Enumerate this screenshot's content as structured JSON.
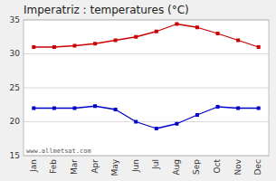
{
  "chart_data": {
    "type": "line",
    "title": "Imperatriz : temperatures (°C)",
    "categories": [
      "Jan",
      "Feb",
      "Mar",
      "Apr",
      "May",
      "Jun",
      "Jul",
      "Aug",
      "Sep",
      "Oct",
      "Nov",
      "Dec"
    ],
    "series": [
      {
        "color": "#cc0000",
        "marker": "square",
        "values": [
          31.0,
          31.0,
          31.2,
          31.5,
          32.0,
          32.5,
          33.3,
          34.4,
          33.9,
          33.0,
          32.0,
          31.0
        ]
      },
      {
        "color": "#0000cc",
        "marker": "square",
        "values": [
          22.0,
          22.0,
          22.0,
          22.3,
          21.8,
          20.0,
          19.0,
          19.7,
          21.0,
          22.2,
          22.0,
          22.0
        ]
      }
    ],
    "ylim": [
      15,
      35
    ],
    "yticks": [
      15,
      20,
      25,
      30,
      35
    ],
    "grid": true,
    "annotations": [
      "www.allmetsat.com"
    ]
  }
}
